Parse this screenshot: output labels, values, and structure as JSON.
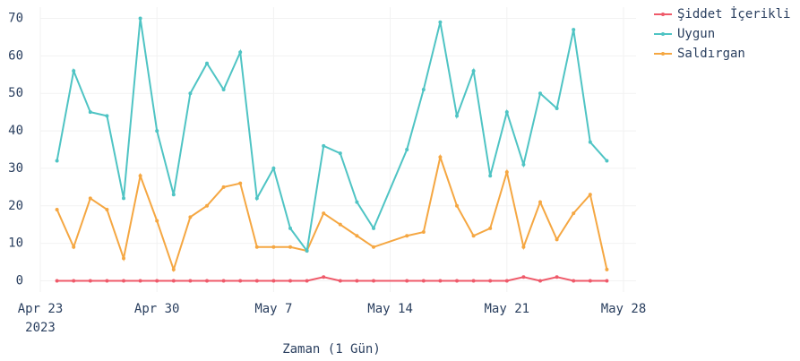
{
  "chart_data": {
    "type": "line",
    "x_label": "Zaman (1 Gün)",
    "x": [
      "2023-04-24",
      "2023-04-25",
      "2023-04-26",
      "2023-04-27",
      "2023-04-28",
      "2023-04-29",
      "2023-04-30",
      "2023-05-01",
      "2023-05-02",
      "2023-05-03",
      "2023-05-04",
      "2023-05-05",
      "2023-05-06",
      "2023-05-07",
      "2023-05-08",
      "2023-05-09",
      "2023-05-10",
      "2023-05-11",
      "2023-05-12",
      "2023-05-13",
      "2023-05-15",
      "2023-05-16",
      "2023-05-17",
      "2023-05-18",
      "2023-05-19",
      "2023-05-20",
      "2023-05-21",
      "2023-05-22",
      "2023-05-23",
      "2023-05-24",
      "2023-05-25",
      "2023-05-26",
      "2023-05-27"
    ],
    "series": [
      {
        "name": "Şiddet İçerikli",
        "color": "#ef5a6a",
        "values": [
          0,
          0,
          0,
          0,
          0,
          0,
          0,
          0,
          0,
          0,
          0,
          0,
          0,
          0,
          0,
          0,
          1,
          0,
          0,
          0,
          0,
          0,
          0,
          0,
          0,
          0,
          0,
          1,
          0,
          1,
          0,
          0,
          0
        ]
      },
      {
        "name": "Uygun",
        "color": "#4fc4c4",
        "values": [
          32,
          56,
          45,
          44,
          22,
          70,
          40,
          23,
          50,
          58,
          51,
          61,
          22,
          30,
          14,
          8,
          36,
          34,
          21,
          14,
          35,
          51,
          69,
          44,
          56,
          28,
          45,
          31,
          50,
          46,
          67,
          37,
          32
        ]
      },
      {
        "name": "Saldırgan",
        "color": "#f5a742",
        "values": [
          19,
          9,
          22,
          19,
          6,
          28,
          16,
          3,
          17,
          20,
          25,
          26,
          9,
          9,
          9,
          8,
          18,
          15,
          12,
          9,
          12,
          13,
          33,
          20,
          12,
          14,
          29,
          9,
          21,
          11,
          18,
          23,
          3
        ]
      }
    ],
    "xlim": [
      "2023-04-23",
      "2023-05-28"
    ],
    "xticks": [
      {
        "value": "2023-04-23",
        "label": "Apr 23"
      },
      {
        "value": "2023-04-30",
        "label": "Apr 30"
      },
      {
        "value": "2023-05-07",
        "label": "May 7"
      },
      {
        "value": "2023-05-14",
        "label": "May 14"
      },
      {
        "value": "2023-05-21",
        "label": "May 21"
      },
      {
        "value": "2023-05-28",
        "label": "May 28"
      }
    ],
    "x_year_label": "2023",
    "ylim": [
      -3,
      73
    ],
    "yticks": [
      0,
      10,
      20,
      30,
      40,
      50,
      60,
      70
    ],
    "grid": true,
    "legend": "top-right"
  }
}
